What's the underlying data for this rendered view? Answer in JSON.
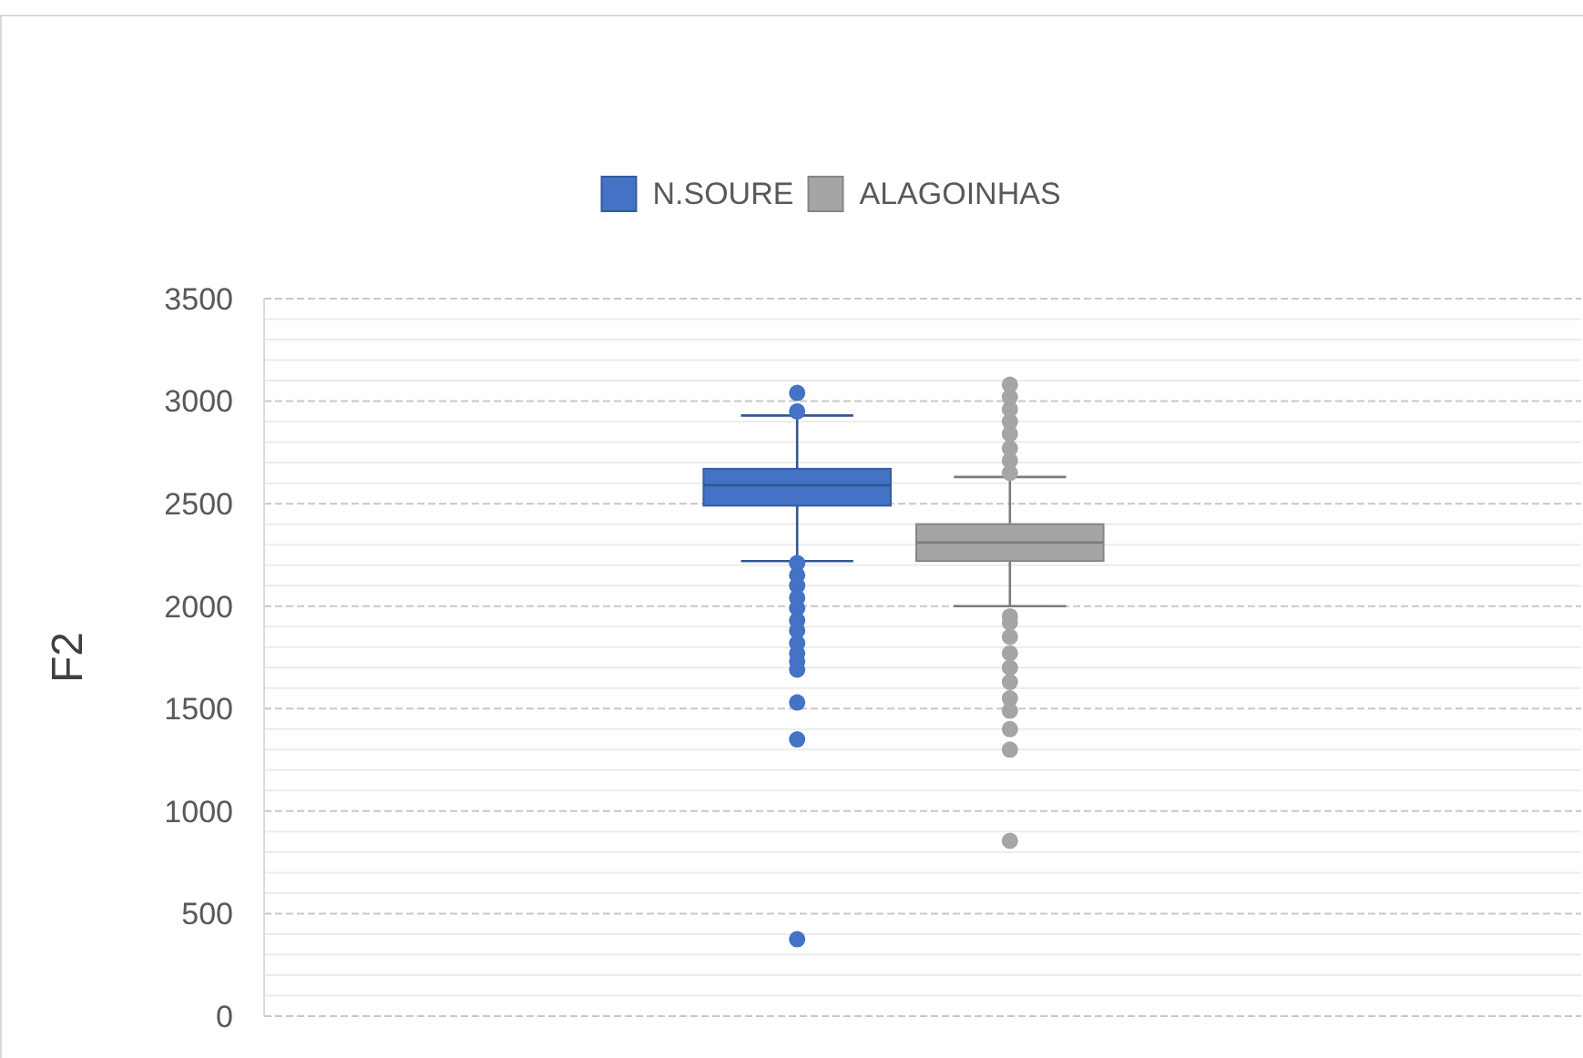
{
  "chart_data": {
    "type": "box",
    "ylabel": "F2",
    "categories": [
      null
    ],
    "ylim": [
      0,
      3500
    ],
    "yticks": [
      0,
      {
        "value": 100,
        "label": null
      },
      {
        "value": 200,
        "label": null
      },
      {
        "value": 300,
        "label": null
      },
      {
        "value": 400,
        "label": null
      },
      500,
      {
        "value": 600,
        "label": null
      },
      {
        "value": 700,
        "label": null
      },
      {
        "value": 800,
        "label": null
      },
      {
        "value": 900,
        "label": null
      },
      1000,
      {
        "value": 1100,
        "label": null
      },
      {
        "value": 1200,
        "label": null
      },
      {
        "value": 1300,
        "label": null
      },
      {
        "value": 1400,
        "label": null
      },
      1500,
      {
        "value": 1600,
        "label": null
      },
      {
        "value": 1700,
        "label": null
      },
      {
        "value": 1800,
        "label": null
      },
      {
        "value": 1900,
        "label": null
      },
      2000,
      {
        "value": 2100,
        "label": null
      },
      {
        "value": 2200,
        "label": null
      },
      {
        "value": 2300,
        "label": null
      },
      {
        "value": 2400,
        "label": null
      },
      2500,
      {
        "value": 2600,
        "label": null
      },
      {
        "value": 2700,
        "label": null
      },
      {
        "value": 2800,
        "label": null
      },
      {
        "value": 2900,
        "label": null
      },
      3000,
      {
        "value": 3100,
        "label": null
      },
      {
        "value": 3200,
        "label": null
      },
      {
        "value": 3300,
        "label": null
      },
      {
        "value": 3400,
        "label": null
      },
      3500
    ],
    "grid": true,
    "legend": "top",
    "marker": "circle",
    "series": [
      {
        "name": "N.SOURE",
        "color": "#4472c4",
        "boxes": [
          {
            "low": 2220,
            "q1": 2490,
            "median": 2590,
            "q3": 2670,
            "high": 2930,
            "outliers": [
              3040,
              2950,
              2210,
              2150,
              2100,
              2040,
              1990,
              1930,
              1880,
              1820,
              1770,
              1730,
              1690,
              1530,
              1350,
              375
            ]
          }
        ]
      },
      {
        "name": "ALAGOINHAS",
        "color": "#a5a5a5",
        "boxes": [
          {
            "low": 2000,
            "q1": 2220,
            "median": 2310,
            "q3": 2400,
            "high": 2630,
            "outliers": [
              3080,
              3020,
              2960,
              2900,
              2840,
              2770,
              2710,
              2650,
              1950,
              1920,
              1850,
              1770,
              1700,
              1630,
              1550,
              1490,
              1400,
              1300,
              855
            ]
          }
        ]
      }
    ]
  }
}
